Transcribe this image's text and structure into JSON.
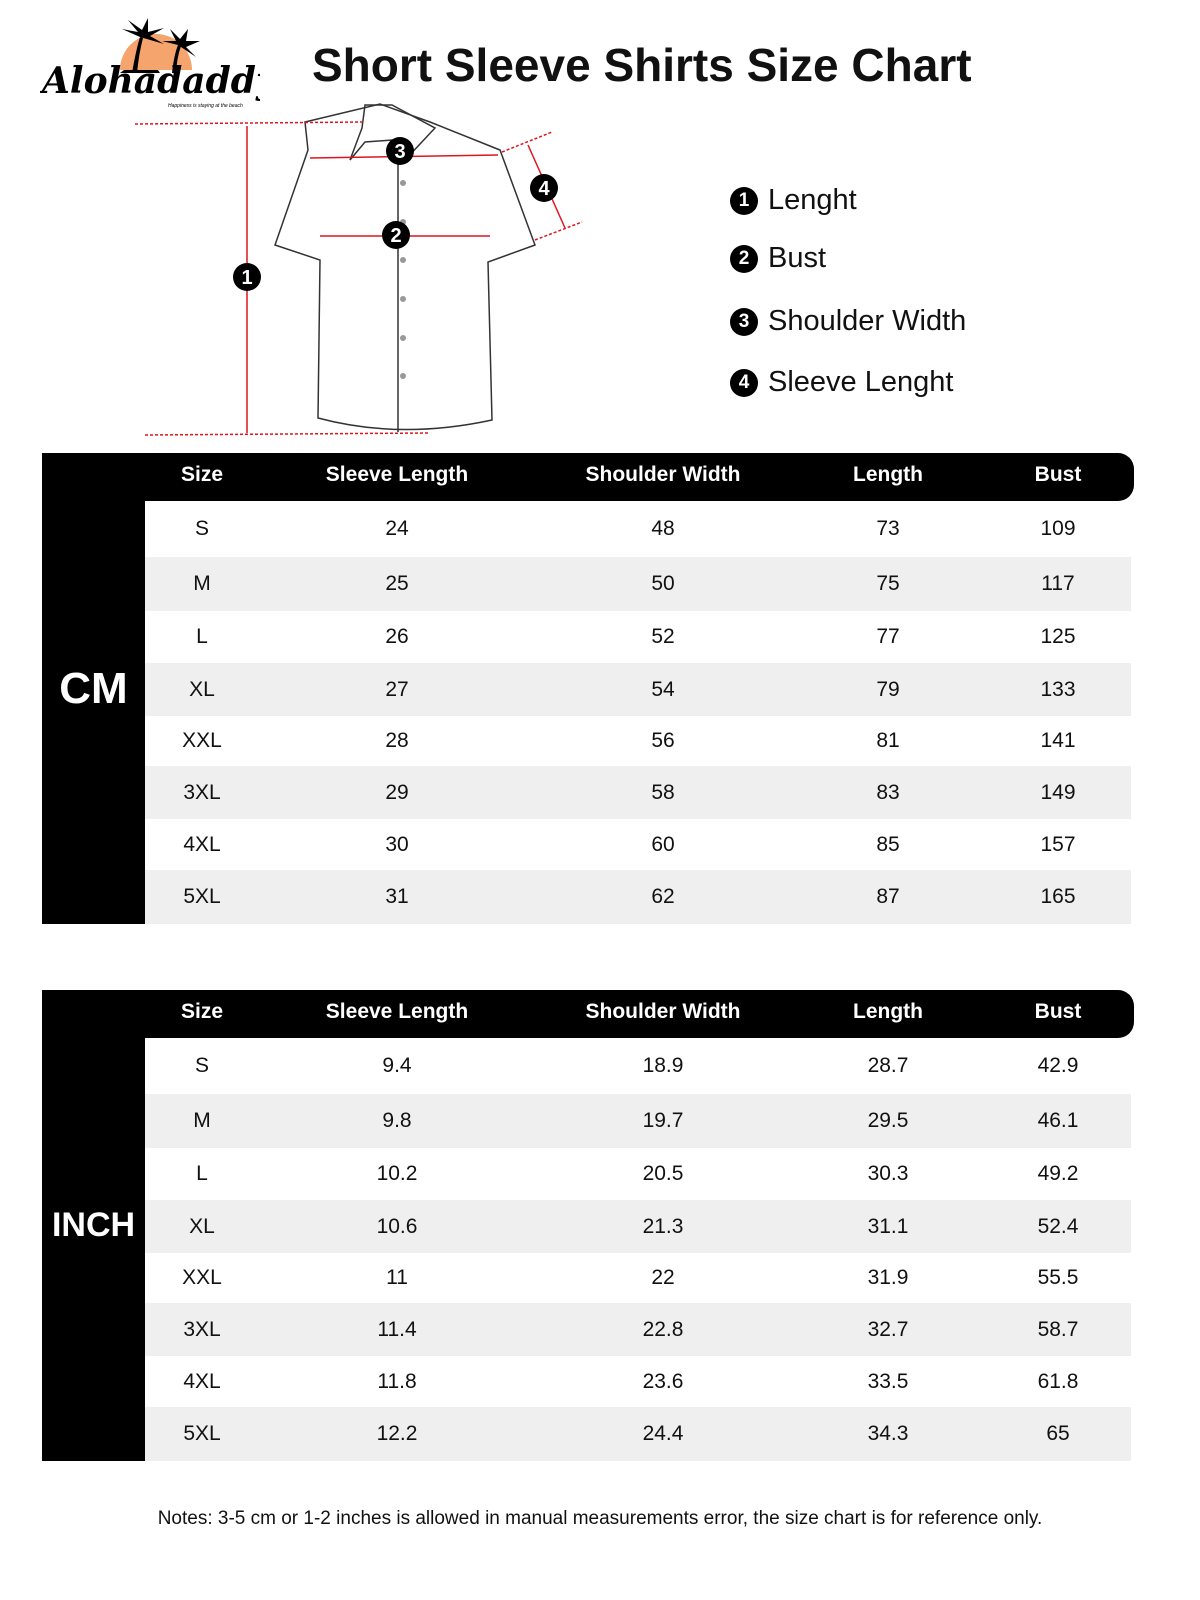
{
  "brand": {
    "name": "Alohadaddy",
    "tagline": "Happiness is staying at the beach"
  },
  "title": "Short Sleeve Shirts Size Chart",
  "legend": [
    {
      "n": "1",
      "label": "Lenght"
    },
    {
      "n": "2",
      "label": "Bust"
    },
    {
      "n": "3",
      "label": "Shoulder Width"
    },
    {
      "n": "4",
      "label": "Sleeve Lenght"
    }
  ],
  "diagram_markers": [
    "1",
    "2",
    "3",
    "4"
  ],
  "columns": [
    "Size",
    "Sleeve Length",
    "Shoulder Width",
    "Length",
    "Bust"
  ],
  "tables": [
    {
      "unit": "CM",
      "rows": [
        [
          "S",
          "24",
          "48",
          "73",
          "109"
        ],
        [
          "M",
          "25",
          "50",
          "75",
          "117"
        ],
        [
          "L",
          "26",
          "52",
          "77",
          "125"
        ],
        [
          "XL",
          "27",
          "54",
          "79",
          "133"
        ],
        [
          "XXL",
          "28",
          "56",
          "81",
          "141"
        ],
        [
          "3XL",
          "29",
          "58",
          "83",
          "149"
        ],
        [
          "4XL",
          "30",
          "60",
          "85",
          "157"
        ],
        [
          "5XL",
          "31",
          "62",
          "87",
          "165"
        ]
      ]
    },
    {
      "unit": "INCH",
      "rows": [
        [
          "S",
          "9.4",
          "18.9",
          "28.7",
          "42.9"
        ],
        [
          "M",
          "9.8",
          "19.7",
          "29.5",
          "46.1"
        ],
        [
          "L",
          "10.2",
          "20.5",
          "30.3",
          "49.2"
        ],
        [
          "XL",
          "10.6",
          "21.3",
          "31.1",
          "52.4"
        ],
        [
          "XXL",
          "11",
          "22",
          "31.9",
          "55.5"
        ],
        [
          "3XL",
          "11.4",
          "22.8",
          "32.7",
          "58.7"
        ],
        [
          "4XL",
          "11.8",
          "23.6",
          "33.5",
          "61.8"
        ],
        [
          "5XL",
          "12.2",
          "24.4",
          "34.3",
          "65"
        ]
      ]
    }
  ],
  "notes": "Notes: 3-5 cm or 1-2 inches is allowed in manual measurements error, the size chart is for reference only.",
  "colors": {
    "accent": "#f4a46c",
    "measure": "#e0141e",
    "stripe": "#efefef"
  }
}
